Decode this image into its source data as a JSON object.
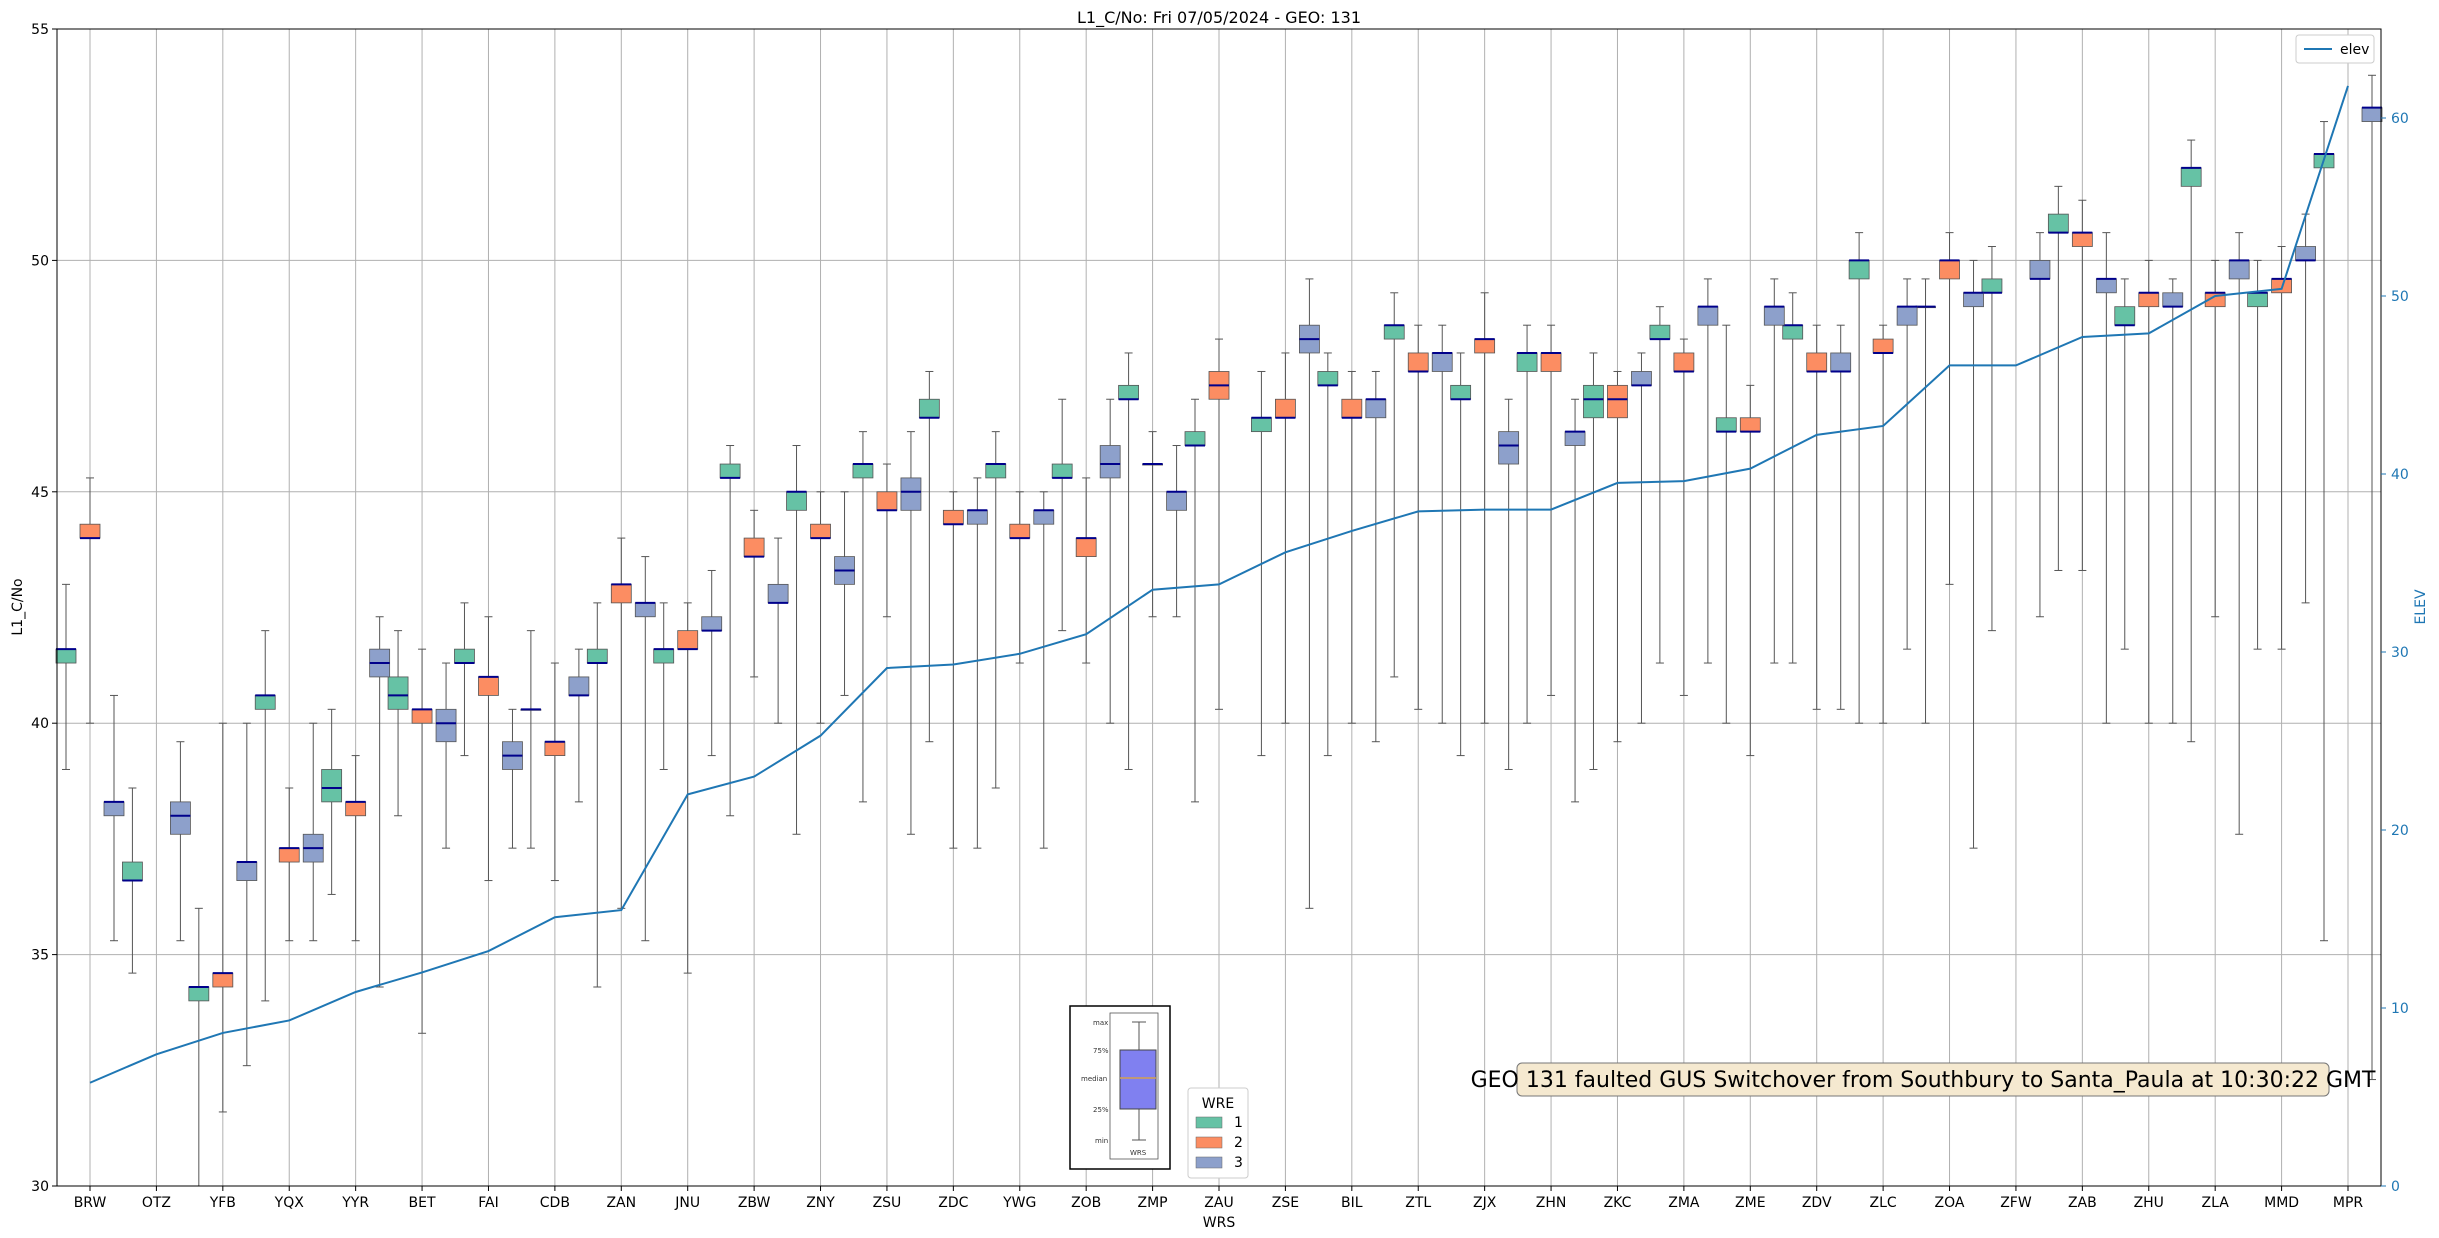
{
  "chart_data": {
    "type": "box",
    "title": "L1_C/No: Fri 07/05/2024 - GEO: 131",
    "xlabel": "WRS",
    "ylabel": "L1_C/No",
    "y2label": "ELEV",
    "ylim": [
      30,
      55
    ],
    "y2lim": [
      0,
      65
    ],
    "yticks": [
      30,
      35,
      40,
      45,
      50,
      55
    ],
    "y2ticks": [
      0,
      10,
      20,
      30,
      40,
      50,
      60
    ],
    "grid": true,
    "categories": [
      "BRW",
      "OTZ",
      "YFB",
      "YQX",
      "YYR",
      "BET",
      "FAI",
      "CDB",
      "ZAN",
      "JNU",
      "ZBW",
      "ZNY",
      "ZSU",
      "ZDC",
      "YWG",
      "ZOB",
      "ZMP",
      "ZAU",
      "ZSE",
      "BIL",
      "ZTL",
      "ZJX",
      "ZHN",
      "ZKC",
      "ZMA",
      "ZME",
      "ZDV",
      "ZLC",
      "ZOA",
      "ZFW",
      "ZAB",
      "ZHU",
      "ZLA",
      "MMD",
      "MPR"
    ],
    "wre_colors": {
      "1": "#66c2a5",
      "2": "#fc8d62",
      "3": "#8da0cb"
    },
    "median_color": "#00008b",
    "box_series": [
      {
        "name": "1",
        "stats": [
          {
            "min": 39.0,
            "q1": 41.3,
            "med": 41.6,
            "q3": 41.6,
            "max": 43.0
          },
          {
            "min": 34.6,
            "q1": 36.6,
            "med": 36.6,
            "q3": 37.0,
            "max": 38.6
          },
          {
            "min": 30.0,
            "q1": 34.0,
            "med": 34.3,
            "q3": 34.3,
            "max": 36.0
          },
          {
            "min": 34.0,
            "q1": 40.3,
            "med": 40.6,
            "q3": 40.6,
            "max": 42.0
          },
          {
            "min": 36.3,
            "q1": 38.3,
            "med": 38.6,
            "q3": 39.0,
            "max": 40.3
          },
          {
            "min": 38.0,
            "q1": 40.3,
            "med": 40.6,
            "q3": 41.0,
            "max": 42.0
          },
          {
            "min": 39.3,
            "q1": 41.3,
            "med": 41.3,
            "q3": 41.6,
            "max": 42.6
          },
          {
            "min": 37.3,
            "q1": 40.3,
            "med": 40.3,
            "q3": 40.3,
            "max": 42.0
          },
          {
            "min": 34.3,
            "q1": 41.3,
            "med": 41.3,
            "q3": 41.6,
            "max": 42.6
          },
          {
            "min": 39.0,
            "q1": 41.3,
            "med": 41.6,
            "q3": 41.6,
            "max": 42.6
          },
          {
            "min": 38.0,
            "q1": 45.3,
            "med": 45.3,
            "q3": 45.6,
            "max": 46.0
          },
          {
            "min": 37.6,
            "q1": 44.6,
            "med": 45.0,
            "q3": 45.0,
            "max": 46.0
          },
          {
            "min": 38.3,
            "q1": 45.3,
            "med": 45.6,
            "q3": 45.6,
            "max": 46.3
          },
          {
            "min": 39.6,
            "q1": 46.6,
            "med": 46.6,
            "q3": 47.0,
            "max": 47.6
          },
          {
            "min": 38.6,
            "q1": 45.3,
            "med": 45.6,
            "q3": 45.6,
            "max": 46.3
          },
          {
            "min": 42.0,
            "q1": 45.3,
            "med": 45.3,
            "q3": 45.6,
            "max": 47.0
          },
          {
            "min": 39.0,
            "q1": 47.0,
            "med": 47.0,
            "q3": 47.3,
            "max": 48.0
          },
          {
            "min": 38.3,
            "q1": 46.0,
            "med": 46.0,
            "q3": 46.3,
            "max": 47.0
          },
          {
            "min": 39.3,
            "q1": 46.3,
            "med": 46.6,
            "q3": 46.6,
            "max": 47.6
          },
          {
            "min": 39.3,
            "q1": 47.3,
            "med": 47.3,
            "q3": 47.6,
            "max": 48.0
          },
          {
            "min": 41.0,
            "q1": 48.3,
            "med": 48.6,
            "q3": 48.6,
            "max": 49.3
          },
          {
            "min": 39.3,
            "q1": 47.0,
            "med": 47.0,
            "q3": 47.3,
            "max": 48.0
          },
          {
            "min": 40.0,
            "q1": 47.6,
            "med": 48.0,
            "q3": 48.0,
            "max": 48.6
          },
          {
            "min": 39.0,
            "q1": 46.6,
            "med": 47.0,
            "q3": 47.3,
            "max": 48.0
          },
          {
            "min": 41.3,
            "q1": 48.3,
            "med": 48.3,
            "q3": 48.6,
            "max": 49.0
          },
          {
            "min": 40.0,
            "q1": 46.3,
            "med": 46.3,
            "q3": 46.6,
            "max": 48.6
          },
          {
            "min": 41.3,
            "q1": 48.3,
            "med": 48.6,
            "q3": 48.6,
            "max": 49.3
          },
          {
            "min": 40.0,
            "q1": 49.6,
            "med": 50.0,
            "q3": 50.0,
            "max": 50.6
          },
          {
            "min": 40.0,
            "q1": 49.0,
            "med": 49.0,
            "q3": 49.0,
            "max": 49.6
          },
          {
            "min": 42.0,
            "q1": 49.3,
            "med": 49.3,
            "q3": 49.6,
            "max": 50.3
          },
          {
            "min": 43.3,
            "q1": 50.6,
            "med": 50.6,
            "q3": 51.0,
            "max": 51.6
          },
          {
            "min": 41.6,
            "q1": 48.6,
            "med": 48.6,
            "q3": 49.0,
            "max": 49.6
          },
          {
            "min": 39.6,
            "q1": 51.6,
            "med": 52.0,
            "q3": 52.0,
            "max": 52.6
          },
          {
            "min": 41.6,
            "q1": 49.0,
            "med": 49.3,
            "q3": 49.3,
            "max": 50.0
          },
          {
            "min": 35.3,
            "q1": 52.0,
            "med": 52.3,
            "q3": 52.3,
            "max": 53.0
          }
        ]
      },
      {
        "name": "2",
        "stats": [
          {
            "min": 40.0,
            "q1": 44.0,
            "med": 44.0,
            "q3": 44.3,
            "max": 45.3
          },
          null,
          {
            "min": 31.6,
            "q1": 34.3,
            "med": 34.6,
            "q3": 34.6,
            "max": 40.0
          },
          {
            "min": 35.3,
            "q1": 37.0,
            "med": 37.3,
            "q3": 37.3,
            "max": 38.6
          },
          {
            "min": 35.3,
            "q1": 38.0,
            "med": 38.3,
            "q3": 38.3,
            "max": 39.3
          },
          {
            "min": 33.3,
            "q1": 40.0,
            "med": 40.3,
            "q3": 40.3,
            "max": 41.6
          },
          {
            "min": 36.6,
            "q1": 40.6,
            "med": 41.0,
            "q3": 41.0,
            "max": 42.3
          },
          {
            "min": 36.6,
            "q1": 39.3,
            "med": 39.6,
            "q3": 39.6,
            "max": 41.3
          },
          {
            "min": 36.0,
            "q1": 42.6,
            "med": 43.0,
            "q3": 43.0,
            "max": 44.0
          },
          {
            "min": 34.6,
            "q1": 41.6,
            "med": 41.6,
            "q3": 42.0,
            "max": 42.6
          },
          {
            "min": 41.0,
            "q1": 43.6,
            "med": 43.6,
            "q3": 44.0,
            "max": 44.6
          },
          {
            "min": 40.0,
            "q1": 44.0,
            "med": 44.0,
            "q3": 44.3,
            "max": 45.0
          },
          {
            "min": 42.3,
            "q1": 44.6,
            "med": 44.6,
            "q3": 45.0,
            "max": 45.6
          },
          {
            "min": 37.3,
            "q1": 44.3,
            "med": 44.3,
            "q3": 44.6,
            "max": 45.0
          },
          {
            "min": 41.3,
            "q1": 44.0,
            "med": 44.0,
            "q3": 44.3,
            "max": 45.0
          },
          {
            "min": 41.3,
            "q1": 43.6,
            "med": 44.0,
            "q3": 44.0,
            "max": 45.3
          },
          {
            "min": 42.3,
            "q1": 45.6,
            "med": 45.6,
            "q3": 45.6,
            "max": 46.3
          },
          {
            "min": 40.3,
            "q1": 47.0,
            "med": 47.3,
            "q3": 47.6,
            "max": 48.3
          },
          {
            "min": 40.0,
            "q1": 46.6,
            "med": 46.6,
            "q3": 47.0,
            "max": 48.0
          },
          {
            "min": 40.0,
            "q1": 46.6,
            "med": 46.6,
            "q3": 47.0,
            "max": 47.6
          },
          {
            "min": 40.3,
            "q1": 47.6,
            "med": 47.6,
            "q3": 48.0,
            "max": 48.6
          },
          {
            "min": 40.0,
            "q1": 48.0,
            "med": 48.3,
            "q3": 48.3,
            "max": 49.3
          },
          {
            "min": 40.6,
            "q1": 47.6,
            "med": 48.0,
            "q3": 48.0,
            "max": 48.6
          },
          {
            "min": 39.6,
            "q1": 46.6,
            "med": 47.0,
            "q3": 47.3,
            "max": 47.6
          },
          {
            "min": 40.6,
            "q1": 47.6,
            "med": 47.6,
            "q3": 48.0,
            "max": 48.3
          },
          {
            "min": 39.3,
            "q1": 46.3,
            "med": 46.3,
            "q3": 46.6,
            "max": 47.3
          },
          {
            "min": 40.3,
            "q1": 47.6,
            "med": 47.6,
            "q3": 48.0,
            "max": 48.6
          },
          {
            "min": 40.0,
            "q1": 48.0,
            "med": 48.0,
            "q3": 48.3,
            "max": 48.6
          },
          {
            "min": 43.0,
            "q1": 49.6,
            "med": 50.0,
            "q3": 50.0,
            "max": 50.6
          },
          null,
          {
            "min": 43.3,
            "q1": 50.3,
            "med": 50.6,
            "q3": 50.6,
            "max": 51.3
          },
          {
            "min": 40.0,
            "q1": 49.0,
            "med": 49.3,
            "q3": 49.3,
            "max": 50.0
          },
          {
            "min": 42.3,
            "q1": 49.0,
            "med": 49.3,
            "q3": 49.3,
            "max": 50.0
          },
          {
            "min": 41.6,
            "q1": 49.3,
            "med": 49.6,
            "q3": 49.6,
            "max": 50.3
          },
          null
        ]
      },
      {
        "name": "3",
        "stats": [
          {
            "min": 35.3,
            "q1": 38.0,
            "med": 38.3,
            "q3": 38.3,
            "max": 40.6
          },
          {
            "min": 35.3,
            "q1": 37.6,
            "med": 38.0,
            "q3": 38.3,
            "max": 39.6
          },
          {
            "min": 32.6,
            "q1": 36.6,
            "med": 37.0,
            "q3": 37.0,
            "max": 40.0
          },
          {
            "min": 35.3,
            "q1": 37.0,
            "med": 37.3,
            "q3": 37.6,
            "max": 40.0
          },
          {
            "min": 34.3,
            "q1": 41.0,
            "med": 41.3,
            "q3": 41.6,
            "max": 42.3
          },
          {
            "min": 37.3,
            "q1": 39.6,
            "med": 40.0,
            "q3": 40.3,
            "max": 41.3
          },
          {
            "min": 37.3,
            "q1": 39.0,
            "med": 39.3,
            "q3": 39.6,
            "max": 40.3
          },
          {
            "min": 38.3,
            "q1": 40.6,
            "med": 40.6,
            "q3": 41.0,
            "max": 41.6
          },
          {
            "min": 35.3,
            "q1": 42.3,
            "med": 42.6,
            "q3": 42.6,
            "max": 43.6
          },
          {
            "min": 39.3,
            "q1": 42.0,
            "med": 42.0,
            "q3": 42.3,
            "max": 43.3
          },
          {
            "min": 40.0,
            "q1": 42.6,
            "med": 42.6,
            "q3": 43.0,
            "max": 44.0
          },
          {
            "min": 40.6,
            "q1": 43.0,
            "med": 43.3,
            "q3": 43.6,
            "max": 45.0
          },
          {
            "min": 37.6,
            "q1": 44.6,
            "med": 45.0,
            "q3": 45.3,
            "max": 46.3
          },
          {
            "min": 37.3,
            "q1": 44.3,
            "med": 44.6,
            "q3": 44.6,
            "max": 45.3
          },
          {
            "min": 37.3,
            "q1": 44.3,
            "med": 44.6,
            "q3": 44.6,
            "max": 45.0
          },
          {
            "min": 40.0,
            "q1": 45.3,
            "med": 45.6,
            "q3": 46.0,
            "max": 47.0
          },
          {
            "min": 42.3,
            "q1": 44.6,
            "med": 45.0,
            "q3": 45.0,
            "max": 46.0
          },
          null,
          {
            "min": 36.0,
            "q1": 48.0,
            "med": 48.3,
            "q3": 48.6,
            "max": 49.6
          },
          {
            "min": 39.6,
            "q1": 46.6,
            "med": 47.0,
            "q3": 47.0,
            "max": 47.6
          },
          {
            "min": 40.0,
            "q1": 47.6,
            "med": 48.0,
            "q3": 48.0,
            "max": 48.6
          },
          {
            "min": 39.0,
            "q1": 45.6,
            "med": 46.0,
            "q3": 46.3,
            "max": 47.0
          },
          {
            "min": 38.3,
            "q1": 46.0,
            "med": 46.3,
            "q3": 46.3,
            "max": 47.0
          },
          {
            "min": 40.0,
            "q1": 47.3,
            "med": 47.3,
            "q3": 47.6,
            "max": 48.0
          },
          {
            "min": 41.3,
            "q1": 48.6,
            "med": 49.0,
            "q3": 49.0,
            "max": 49.6
          },
          {
            "min": 41.3,
            "q1": 48.6,
            "med": 49.0,
            "q3": 49.0,
            "max": 49.6
          },
          {
            "min": 40.3,
            "q1": 47.6,
            "med": 47.6,
            "q3": 48.0,
            "max": 48.6
          },
          {
            "min": 41.6,
            "q1": 48.6,
            "med": 49.0,
            "q3": 49.0,
            "max": 49.6
          },
          {
            "min": 37.3,
            "q1": 49.0,
            "med": 49.3,
            "q3": 49.3,
            "max": 50.0
          },
          {
            "min": 42.3,
            "q1": 49.6,
            "med": 49.6,
            "q3": 50.0,
            "max": 50.6
          },
          {
            "min": 40.0,
            "q1": 49.3,
            "med": 49.6,
            "q3": 49.6,
            "max": 50.6
          },
          {
            "min": 40.0,
            "q1": 49.0,
            "med": 49.0,
            "q3": 49.3,
            "max": 49.6
          },
          {
            "min": 37.6,
            "q1": 49.6,
            "med": 50.0,
            "q3": 50.0,
            "max": 50.6
          },
          {
            "min": 42.6,
            "q1": 50.0,
            "med": 50.0,
            "q3": 50.3,
            "max": 51.0
          },
          {
            "min": 32.3,
            "q1": 53.0,
            "med": 53.3,
            "q3": 53.3,
            "max": 54.0
          }
        ]
      }
    ],
    "line_series": {
      "name": "elev",
      "color": "#1f77b4",
      "values": [
        5.8,
        7.4,
        8.6,
        9.3,
        10.9,
        12.0,
        13.2,
        15.1,
        15.5,
        22.0,
        23.0,
        25.3,
        29.1,
        29.3,
        29.9,
        31.0,
        33.5,
        33.8,
        35.6,
        36.8,
        37.9,
        38.0,
        38.0,
        39.5,
        39.6,
        40.3,
        42.2,
        42.7,
        46.1,
        46.1,
        47.7,
        47.9,
        50.0,
        50.4,
        61.8
      ]
    },
    "legend_line": {
      "placement": "top-right",
      "label": "elev"
    },
    "legend_wre": {
      "title": "WRE",
      "labels": [
        "1",
        "2",
        "3"
      ],
      "placement": "lower-center"
    },
    "boxplot_key": {
      "labels": [
        "max",
        "75%",
        "median",
        "25%",
        "min"
      ],
      "caption": "WRS",
      "box_color": "#8080f0",
      "median_color": "#d4a050"
    },
    "annotation": {
      "text": "GEO 131 faulted GUS Switchover from Southbury to Santa_Paula at 10:30:22 GMT",
      "background": "#f5e9d0"
    }
  }
}
